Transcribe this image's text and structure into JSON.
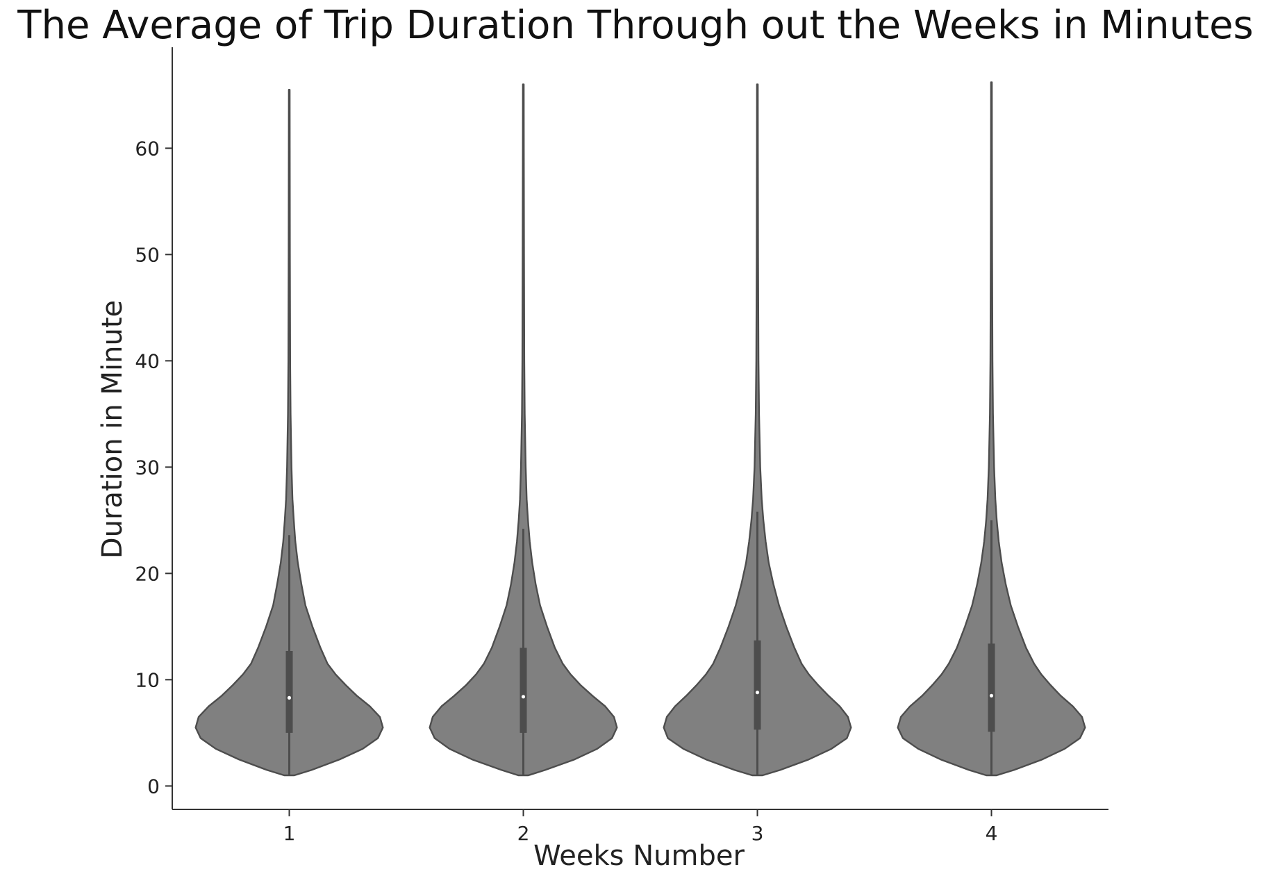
{
  "chart_data": {
    "type": "violin",
    "title": "The Average of Trip Duration Through out the Weeks in Minutes",
    "xlabel": "Weeks Number",
    "ylabel": "Duration in Minute",
    "categories": [
      "1",
      "2",
      "3",
      "4"
    ],
    "yticks": [
      0,
      10,
      20,
      30,
      40,
      50,
      60
    ],
    "ylim": [
      -2.2,
      69.5
    ],
    "grid": false,
    "legend": "none",
    "colors": {
      "violin_fill": "#808080",
      "violin_edge": "#4d4d4d",
      "box": "#4d4d4d",
      "median_dot": "#ffffff",
      "axis": "#333333",
      "text": "#222222"
    },
    "series": [
      {
        "category": "1",
        "min": 1.0,
        "max": 65.5,
        "q1": 5.0,
        "median": 8.3,
        "q3": 12.7,
        "whisker_low": 1.0,
        "whisker_high": 23.6,
        "density": [
          [
            1.0,
            0.05
          ],
          [
            1.5,
            0.22
          ],
          [
            2.5,
            0.5
          ],
          [
            3.5,
            0.73
          ],
          [
            4.5,
            0.88
          ],
          [
            5.5,
            0.93
          ],
          [
            6.5,
            0.9
          ],
          [
            7.5,
            0.8
          ],
          [
            8.5,
            0.67
          ],
          [
            9.5,
            0.56
          ],
          [
            10.5,
            0.46
          ],
          [
            11.5,
            0.38
          ],
          [
            13,
            0.31
          ],
          [
            15,
            0.23
          ],
          [
            17,
            0.16
          ],
          [
            19,
            0.12
          ],
          [
            21,
            0.085
          ],
          [
            23,
            0.06
          ],
          [
            25,
            0.045
          ],
          [
            27,
            0.032
          ],
          [
            30,
            0.022
          ],
          [
            35,
            0.013
          ],
          [
            40,
            0.009
          ],
          [
            50,
            0.006
          ],
          [
            60,
            0.005
          ],
          [
            65.5,
            0.004
          ]
        ]
      },
      {
        "category": "2",
        "min": 1.0,
        "max": 66.0,
        "q1": 5.0,
        "median": 8.4,
        "q3": 13.0,
        "whisker_low": 1.0,
        "whisker_high": 24.2,
        "density": [
          [
            1.0,
            0.05
          ],
          [
            1.5,
            0.22
          ],
          [
            2.5,
            0.52
          ],
          [
            3.5,
            0.75
          ],
          [
            4.5,
            0.9
          ],
          [
            5.5,
            0.95
          ],
          [
            6.5,
            0.92
          ],
          [
            7.5,
            0.83
          ],
          [
            8.5,
            0.7
          ],
          [
            9.5,
            0.58
          ],
          [
            10.5,
            0.48
          ],
          [
            11.5,
            0.4
          ],
          [
            13,
            0.32
          ],
          [
            15,
            0.24
          ],
          [
            17,
            0.17
          ],
          [
            19,
            0.125
          ],
          [
            21,
            0.09
          ],
          [
            23,
            0.065
          ],
          [
            25,
            0.047
          ],
          [
            27,
            0.034
          ],
          [
            30,
            0.024
          ],
          [
            35,
            0.014
          ],
          [
            40,
            0.01
          ],
          [
            50,
            0.007
          ],
          [
            60,
            0.005
          ],
          [
            66,
            0.004
          ]
        ]
      },
      {
        "category": "3",
        "min": 1.0,
        "max": 66.0,
        "q1": 5.3,
        "median": 8.8,
        "q3": 13.7,
        "whisker_low": 1.0,
        "whisker_high": 25.8,
        "density": [
          [
            1.0,
            0.05
          ],
          [
            1.5,
            0.22
          ],
          [
            2.5,
            0.5
          ],
          [
            3.5,
            0.72
          ],
          [
            4.5,
            0.87
          ],
          [
            5.5,
            0.91
          ],
          [
            6.5,
            0.88
          ],
          [
            7.5,
            0.8
          ],
          [
            8.5,
            0.69
          ],
          [
            9.5,
            0.59
          ],
          [
            10.5,
            0.5
          ],
          [
            11.5,
            0.43
          ],
          [
            13,
            0.36
          ],
          [
            15,
            0.28
          ],
          [
            17,
            0.21
          ],
          [
            19,
            0.155
          ],
          [
            21,
            0.11
          ],
          [
            23,
            0.08
          ],
          [
            25,
            0.058
          ],
          [
            27,
            0.042
          ],
          [
            30,
            0.028
          ],
          [
            35,
            0.016
          ],
          [
            40,
            0.011
          ],
          [
            50,
            0.007
          ],
          [
            60,
            0.005
          ],
          [
            66,
            0.004
          ]
        ]
      },
      {
        "category": "4",
        "min": 1.0,
        "max": 66.2,
        "q1": 5.1,
        "median": 8.5,
        "q3": 13.4,
        "whisker_low": 1.0,
        "whisker_high": 25.0,
        "density": [
          [
            1.0,
            0.05
          ],
          [
            1.5,
            0.22
          ],
          [
            2.5,
            0.5
          ],
          [
            3.5,
            0.72
          ],
          [
            4.5,
            0.87
          ],
          [
            5.5,
            0.92
          ],
          [
            6.5,
            0.89
          ],
          [
            7.5,
            0.8
          ],
          [
            8.5,
            0.68
          ],
          [
            9.5,
            0.58
          ],
          [
            10.5,
            0.49
          ],
          [
            11.5,
            0.42
          ],
          [
            13,
            0.34
          ],
          [
            15,
            0.26
          ],
          [
            17,
            0.19
          ],
          [
            19,
            0.14
          ],
          [
            21,
            0.1
          ],
          [
            23,
            0.072
          ],
          [
            25,
            0.052
          ],
          [
            27,
            0.038
          ],
          [
            30,
            0.026
          ],
          [
            35,
            0.015
          ],
          [
            40,
            0.01
          ],
          [
            50,
            0.007
          ],
          [
            60,
            0.005
          ],
          [
            66.2,
            0.004
          ]
        ]
      }
    ]
  }
}
